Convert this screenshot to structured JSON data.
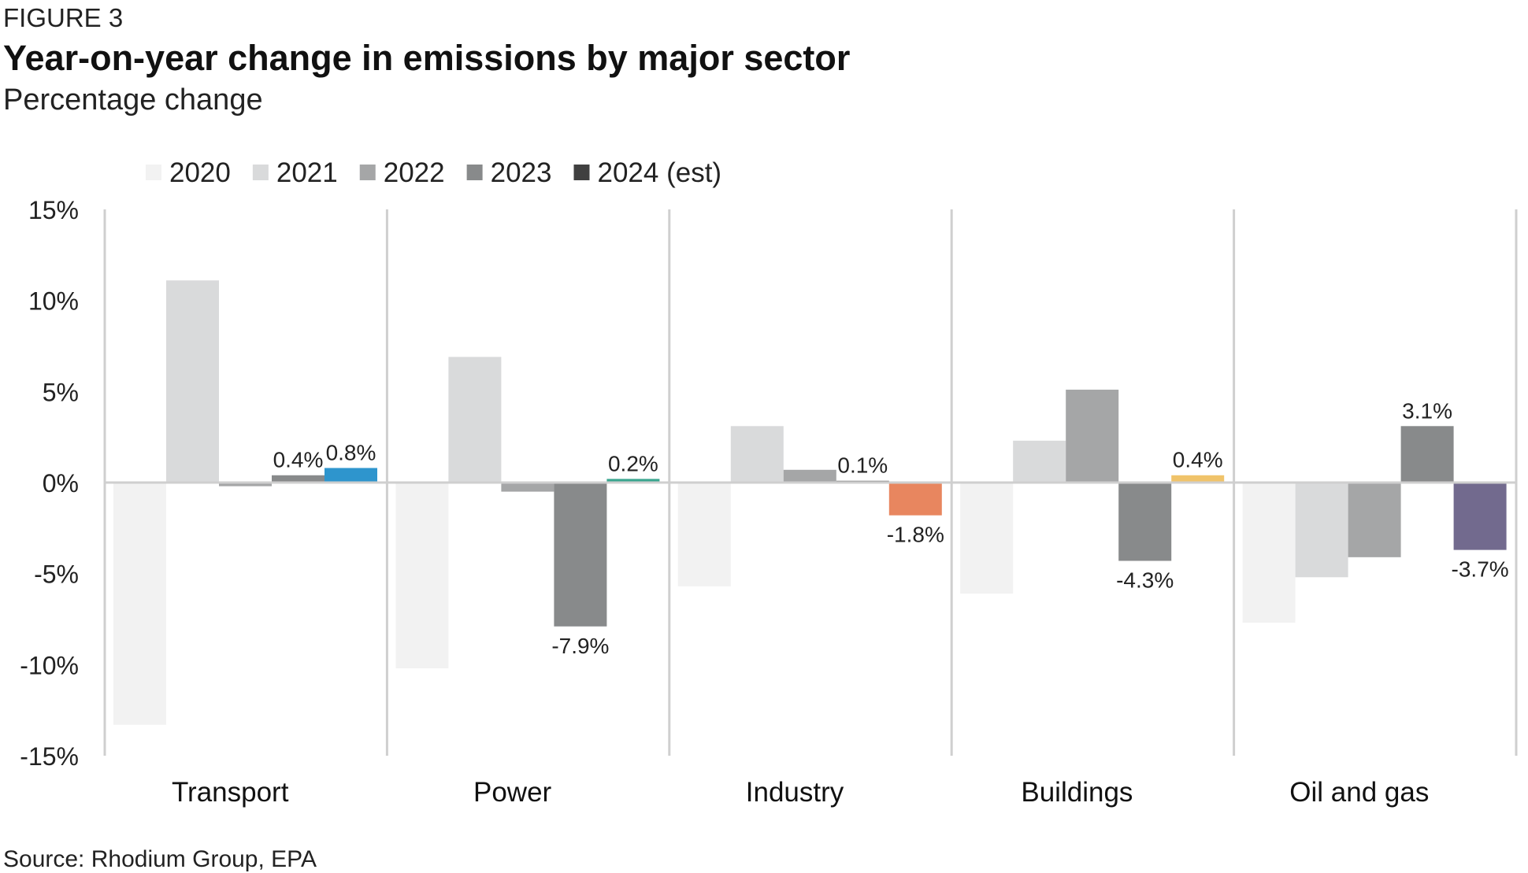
{
  "figure_label": "FIGURE 3",
  "source": "Source: Rhodium Group, EPA",
  "chart_data": {
    "type": "bar",
    "title": "Year-on-year change in emissions by major sector",
    "subtitle": "Percentage change",
    "categories": [
      "Transport",
      "Power",
      "Industry",
      "Buildings",
      "Oil and gas"
    ],
    "series": [
      {
        "name": "2020",
        "color": "#f2f2f2",
        "values": [
          -13.3,
          -10.2,
          -5.7,
          -6.1,
          -7.7
        ]
      },
      {
        "name": "2021",
        "color": "#d9dadb",
        "values": [
          11.1,
          6.9,
          3.1,
          2.3,
          -5.2
        ]
      },
      {
        "name": "2022",
        "color": "#a5a6a7",
        "values": [
          -0.2,
          -0.5,
          0.7,
          5.1,
          -4.1
        ]
      },
      {
        "name": "2023",
        "color": "#888a8b",
        "values": [
          0.4,
          -7.9,
          0.1,
          -4.3,
          3.1
        ]
      },
      {
        "name": "2024 (est)",
        "color": "#404040",
        "values": [
          0.8,
          0.2,
          -1.8,
          0.4,
          -3.7
        ],
        "bar_colors": [
          "#2e95cd",
          "#3aa58f",
          "#e8865f",
          "#f0c36a",
          "#726a8e"
        ]
      }
    ],
    "data_labels": [
      {
        "category": "Transport",
        "series": "2023",
        "text": "0.4%"
      },
      {
        "category": "Transport",
        "series": "2024 (est)",
        "text": "0.8%"
      },
      {
        "category": "Power",
        "series": "2023",
        "text": "-7.9%"
      },
      {
        "category": "Power",
        "series": "2024 (est)",
        "text": "0.2%"
      },
      {
        "category": "Industry",
        "series": "2023",
        "text": "0.1%"
      },
      {
        "category": "Industry",
        "series": "2024 (est)",
        "text": "-1.8%"
      },
      {
        "category": "Buildings",
        "series": "2023",
        "text": "-4.3%"
      },
      {
        "category": "Buildings",
        "series": "2024 (est)",
        "text": "0.4%"
      },
      {
        "category": "Oil and gas",
        "series": "2023",
        "text": "3.1%"
      },
      {
        "category": "Oil and gas",
        "series": "2024 (est)",
        "text": "-3.7%"
      }
    ],
    "ylim": [
      -15,
      15
    ],
    "yticks": [
      15,
      10,
      5,
      0,
      -5,
      -10,
      -15
    ],
    "ytick_labels": [
      "15%",
      "10%",
      "5%",
      "0%",
      "-5%",
      "-10%",
      "-15%"
    ],
    "xlabel": "",
    "ylabel": "",
    "legend_position": "top-left",
    "grid": false
  }
}
